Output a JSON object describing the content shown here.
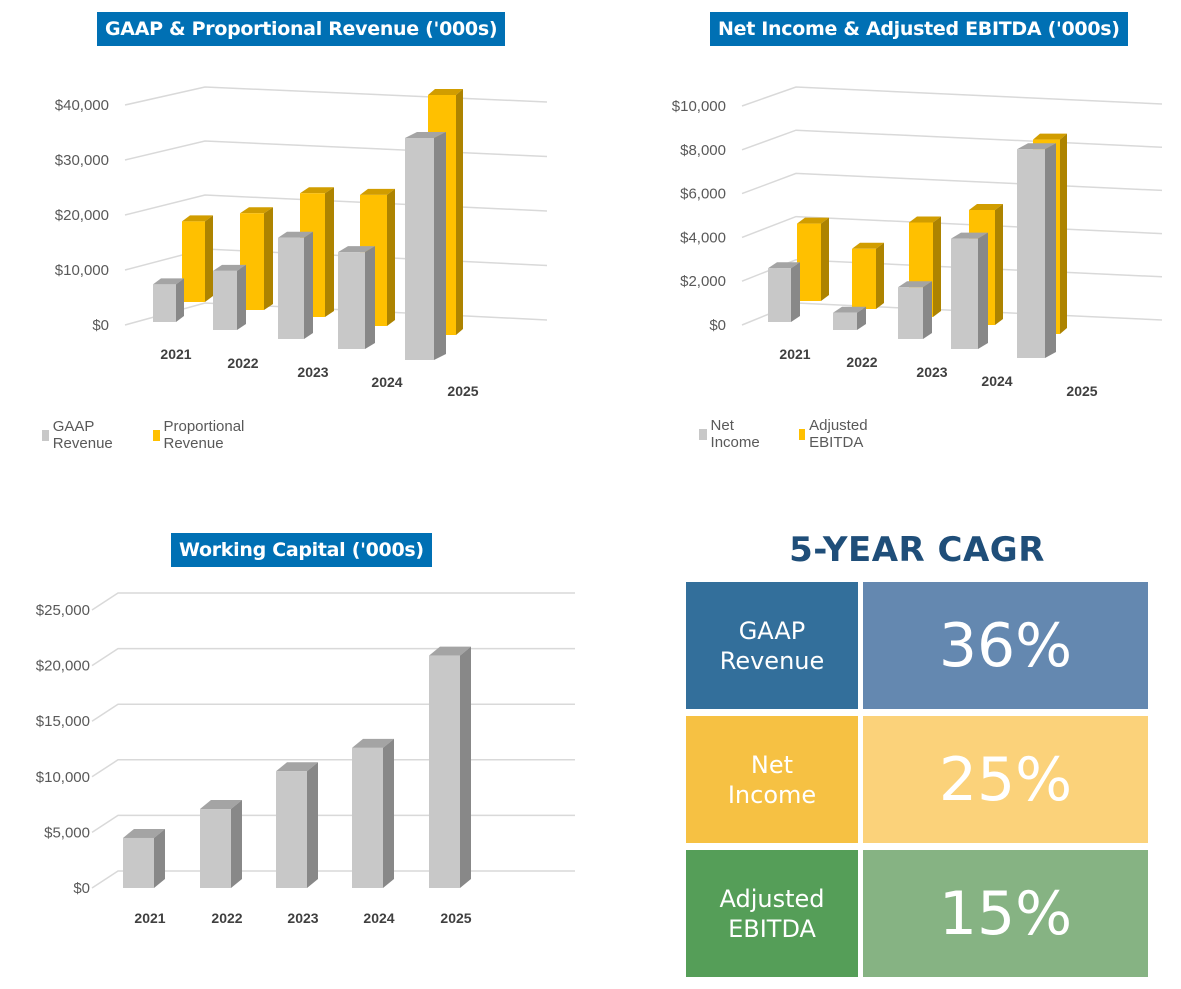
{
  "chart_data": [
    {
      "type": "bar",
      "style": "3d-clustered",
      "title": "GAAP & Proportional Revenue ('000s)",
      "categories": [
        "2021",
        "2022",
        "2023",
        "2024",
        "2025"
      ],
      "series": [
        {
          "name": "GAAP Revenue",
          "color": "#c8c8c8",
          "values": [
            7000,
            11000,
            18000,
            17000,
            37000
          ]
        },
        {
          "name": "Proportional Revenue",
          "color": "#ffc000",
          "values": [
            15000,
            18000,
            22000,
            23000,
            40000
          ]
        }
      ],
      "yticks": [
        "$0",
        "$10,000",
        "$20,000",
        "$30,000",
        "$40,000"
      ],
      "ylim": [
        0,
        40000
      ],
      "xlabel": "",
      "ylabel": "",
      "grid": true,
      "legend": "bottom-left"
    },
    {
      "type": "bar",
      "style": "3d-clustered",
      "title": "Net Income & Adjusted EBITDA ('000s)",
      "categories": [
        "2021",
        "2022",
        "2023",
        "2024",
        "2025"
      ],
      "series": [
        {
          "name": "Net Income",
          "color": "#c8c8c8",
          "values": [
            2500,
            800,
            2300,
            4800,
            8700
          ]
        },
        {
          "name": "Adjusted EBITDA",
          "color": "#ffc000",
          "values": [
            3600,
            2800,
            4200,
            5000,
            8100
          ]
        }
      ],
      "yticks": [
        "$0",
        "$2,000",
        "$4,000",
        "$6,000",
        "$8,000",
        "$10,000"
      ],
      "ylim": [
        0,
        10000
      ],
      "xlabel": "",
      "ylabel": "",
      "grid": true,
      "legend": "bottom-left"
    },
    {
      "type": "bar",
      "style": "3d-column",
      "title": "Working Capital ('000s)",
      "categories": [
        "2021",
        "2022",
        "2023",
        "2024",
        "2025"
      ],
      "series": [
        {
          "name": "Working Capital",
          "color": "#c8c8c8",
          "values": [
            4500,
            7100,
            10500,
            12600,
            20900
          ]
        }
      ],
      "yticks": [
        "$0",
        "$5,000",
        "$10,000",
        "$15,000",
        "$20,000",
        "$25,000"
      ],
      "ylim": [
        0,
        25000
      ],
      "xlabel": "",
      "ylabel": "",
      "grid": true,
      "legend": "none"
    }
  ],
  "cagr": {
    "title": "5-YEAR CAGR",
    "rows": [
      {
        "label_line1": "GAAP",
        "label_line2": "Revenue",
        "value": "36%",
        "label_color": "#336f9b",
        "value_color": "#6488b0"
      },
      {
        "label_line1": "Net",
        "label_line2": "Income",
        "value": "25%",
        "label_color": "#f6c143",
        "value_color": "#fbd27a"
      },
      {
        "label_line1": "Adjusted",
        "label_line2": "EBITDA",
        "value": "15%",
        "label_color": "#559e58",
        "value_color": "#86b383"
      }
    ]
  }
}
